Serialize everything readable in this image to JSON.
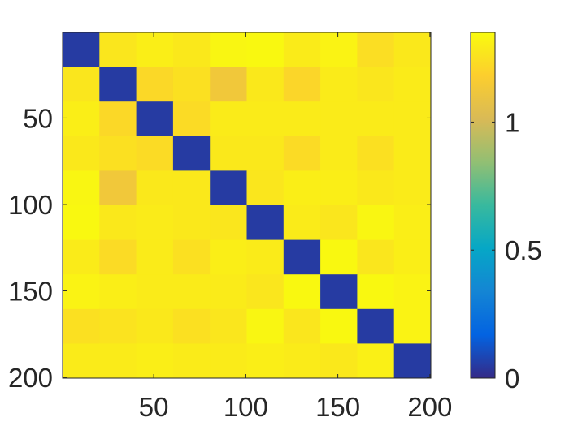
{
  "chart_data": {
    "type": "heatmap",
    "title": "",
    "xlabel": "",
    "ylabel": "",
    "x_range": [
      1,
      200
    ],
    "y_range": [
      1,
      200
    ],
    "y_direction": "reversed",
    "block_size": 20,
    "blocks_per_side": 10,
    "block_values": [
      [
        0.05,
        1.27,
        1.3,
        1.28,
        1.33,
        1.34,
        1.29,
        1.32,
        1.24,
        1.28
      ],
      [
        1.27,
        0.05,
        1.22,
        1.25,
        1.13,
        1.28,
        1.21,
        1.29,
        1.27,
        1.29
      ],
      [
        1.3,
        1.22,
        0.05,
        1.23,
        1.29,
        1.29,
        1.29,
        1.29,
        1.29,
        1.29
      ],
      [
        1.28,
        1.25,
        1.23,
        0.05,
        1.28,
        1.28,
        1.23,
        1.29,
        1.25,
        1.29
      ],
      [
        1.33,
        1.13,
        1.28,
        1.28,
        0.05,
        1.27,
        1.3,
        1.3,
        1.28,
        1.29
      ],
      [
        1.34,
        1.28,
        1.29,
        1.28,
        1.27,
        0.05,
        1.29,
        1.27,
        1.33,
        1.3
      ],
      [
        1.29,
        1.23,
        1.29,
        1.25,
        1.3,
        1.29,
        0.05,
        1.34,
        1.27,
        1.3
      ],
      [
        1.32,
        1.3,
        1.29,
        1.29,
        1.29,
        1.27,
        1.34,
        0.05,
        1.34,
        1.32
      ],
      [
        1.25,
        1.26,
        1.28,
        1.25,
        1.27,
        1.33,
        1.27,
        1.34,
        0.05,
        1.32
      ],
      [
        1.29,
        1.29,
        1.3,
        1.29,
        1.29,
        1.3,
        1.29,
        1.28,
        1.31,
        0.05
      ]
    ],
    "x_ticks": [
      50,
      100,
      150,
      200
    ],
    "x_tick_labels": [
      "50",
      "100",
      "150",
      "200"
    ],
    "y_ticks": [
      50,
      100,
      150,
      200
    ],
    "y_tick_labels": [
      "50",
      "100",
      "150",
      "200"
    ],
    "colormap": "parula",
    "colormap_stops": [
      "#352a87",
      "#0363e1",
      "#1485d4",
      "#06a7c6",
      "#38b99e",
      "#92bf73",
      "#d9ba56",
      "#fcce2e",
      "#f9fb0e"
    ],
    "colorbar": {
      "range": [
        0,
        1.35
      ],
      "ticks": [
        0,
        0.5,
        1
      ],
      "tick_labels": [
        "0",
        "0.5",
        "1"
      ]
    },
    "grid": false,
    "legend": "none"
  }
}
